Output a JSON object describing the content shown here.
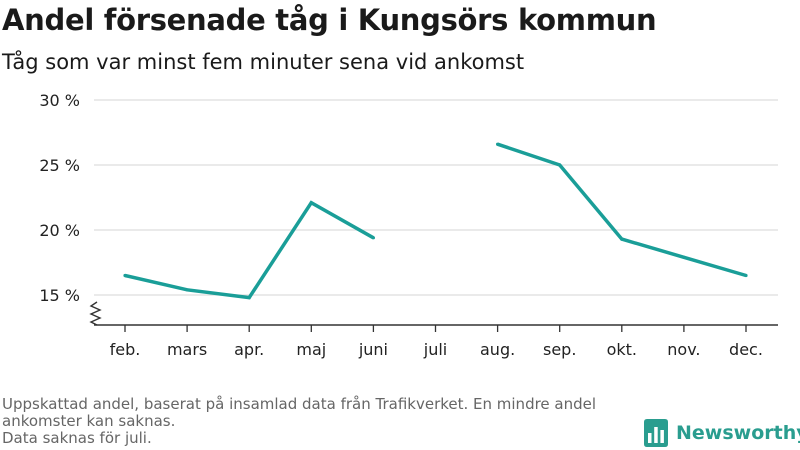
{
  "header": {
    "title": "Andel försenade tåg i Kungsörs kommun",
    "subtitle": "Tåg som var minst fem minuter sena vid ankomst"
  },
  "chart_data": {
    "type": "line",
    "title": "Andel försenade tåg i Kungsörs kommun",
    "subtitle": "Tåg som var minst fem minuter sena vid ankomst",
    "xlabel": "",
    "ylabel": "",
    "categories": [
      "feb.",
      "mars",
      "apr.",
      "maj",
      "juni",
      "juli",
      "aug.",
      "sep.",
      "okt.",
      "nov.",
      "dec."
    ],
    "series": [
      {
        "values": [
          16.5,
          15.4,
          14.8,
          22.1,
          19.4,
          null,
          26.6,
          25.0,
          19.3,
          17.9,
          16.5
        ],
        "color": "#1a9e98"
      }
    ],
    "yticks": [
      15,
      20,
      25,
      30
    ],
    "ytick_labels": [
      "15 %",
      "20 %",
      "25 %",
      "30 %"
    ],
    "ylim": [
      12.6,
      30
    ],
    "y_axis_break": true,
    "grid": true,
    "legend": "none"
  },
  "footer": {
    "note_lines": [
      "Uppskattad andel, baserat på insamlad data från Trafikverket. En mindre andel",
      "ankomster kan saknas.",
      "Data saknas för juli."
    ],
    "brand": "Newsworthy"
  },
  "colors": {
    "line": "#1a9e98",
    "brand": "#2a9d8f",
    "grid": "#dddddd",
    "axis": "#333333",
    "footnote": "#666666"
  },
  "icons": {
    "brand_logo": "newsworthy-bar-chart-logo-icon"
  }
}
